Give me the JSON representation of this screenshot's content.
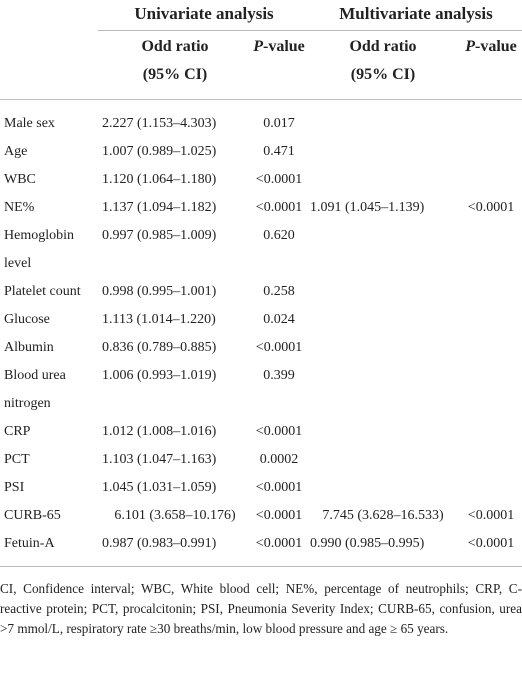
{
  "table": {
    "group_headers": [
      "Univariate analysis",
      "Multivariate analysis"
    ],
    "column_headers": [
      {
        "line1": "Odd ratio",
        "line2": "(95% CI)"
      },
      {
        "italic": "P",
        "rest": "-value"
      },
      {
        "line1": "Odd ratio",
        "line2": "(95% CI)"
      },
      {
        "italic": "P",
        "rest": "-value"
      }
    ],
    "rows": [
      [
        "Male sex",
        "2.227 (1.153–4.303)",
        "0.017",
        null,
        null
      ],
      [
        "Age",
        "1.007 (0.989–1.025)",
        "0.471",
        null,
        null
      ],
      [
        "WBC",
        "1.120 (1.064–1.180)",
        "<0.0001",
        null,
        null
      ],
      [
        "NE%",
        "1.137 (1.094–1.182)",
        "<0.0001",
        "1.091 (1.045–1.139)",
        "<0.0001"
      ],
      [
        "Hemoglobin level",
        "0.997 (0.985–1.009)",
        "0.620",
        null,
        null
      ],
      [
        "Platelet count",
        "0.998 (0.995–1.001)",
        "0.258",
        null,
        null
      ],
      [
        "Glucose",
        "1.113 (1.014–1.220)",
        "0.024",
        null,
        null
      ],
      [
        "Albumin",
        "0.836 (0.789–0.885)",
        "<0.0001",
        null,
        null
      ],
      [
        "Blood urea nitrogen",
        "1.006 (0.993–1.019)",
        "0.399",
        null,
        null
      ],
      [
        "CRP",
        "1.012 (1.008–1.016)",
        "<0.0001",
        null,
        null
      ],
      [
        "PCT",
        "1.103 (1.047–1.163)",
        "0.0002",
        null,
        null
      ],
      [
        "PSI",
        "1.045 (1.031–1.059)",
        "<0.0001",
        null,
        null
      ],
      [
        "CURB-65",
        "6.101 (3.658–10.176)",
        "<0.0001",
        "7.745 (3.628–16.533)",
        "<0.0001"
      ],
      [
        "Fetuin-A",
        "0.987 (0.983–0.991)",
        "<0.0001",
        "0.990 (0.985–0.995)",
        "<0.0001"
      ]
    ],
    "footnote": "CI, Confidence interval; WBC, White blood cell; NE%, percentage of neutrophils; CRP, C-reactive protein; PCT, procalcitonin; PSI, Pneumonia Severity Index; CURB-65, confusion, urea >7 mmol/L, respiratory rate ≥30 breaths/min, low blood pressure and age ≥ 65 years."
  }
}
